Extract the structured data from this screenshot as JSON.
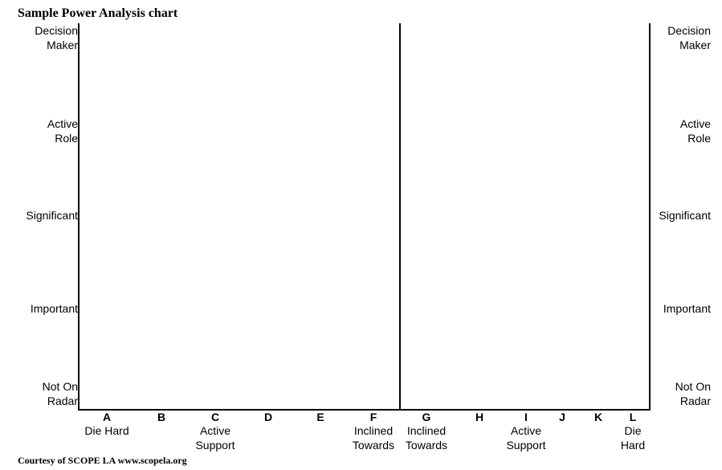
{
  "title": "Sample Power Analysis chart",
  "footer": "Courtesy of SCOPE LA www.scopela.org",
  "y_levels": [
    "Decision\nMaker",
    "Active\nRole",
    "Significant",
    "Important",
    "Not On\nRadar"
  ],
  "columns": [
    {
      "letter": "A",
      "label": "Die Hard"
    },
    {
      "letter": "B",
      "label": ""
    },
    {
      "letter": "C",
      "label": "Active Support"
    },
    {
      "letter": "D",
      "label": ""
    },
    {
      "letter": "E",
      "label": ""
    },
    {
      "letter": "F",
      "label": "Inclined\nTowards"
    },
    {
      "letter": "G",
      "label": "Inclined\nTowards"
    },
    {
      "letter": "H",
      "label": ""
    },
    {
      "letter": "I",
      "label": "Active\nSupport"
    },
    {
      "letter": "J",
      "label": ""
    },
    {
      "letter": "K",
      "label": ""
    },
    {
      "letter": "L",
      "label": "Die\nHard"
    }
  ]
}
